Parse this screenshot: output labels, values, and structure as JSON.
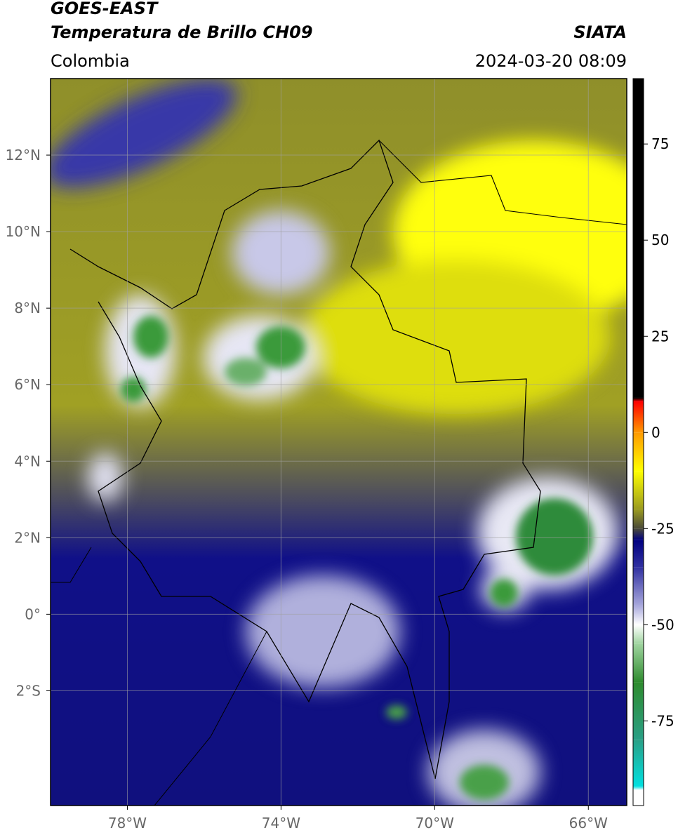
{
  "header": {
    "title": "GOES-EAST",
    "subtitle": "Temperatura de Brillo CH09",
    "source": "SIATA",
    "region": "Colombia",
    "timestamp": "2024-03-20 08:09"
  },
  "map": {
    "xlim": [
      -80,
      -65
    ],
    "ylim": [
      -5,
      14
    ],
    "xticks": [
      {
        "value": -78,
        "label": "78°W"
      },
      {
        "value": -74,
        "label": "74°W"
      },
      {
        "value": -70,
        "label": "70°W"
      },
      {
        "value": -66,
        "label": "66°W"
      }
    ],
    "yticks": [
      {
        "value": 12,
        "label": "12°N"
      },
      {
        "value": 10,
        "label": "10°N"
      },
      {
        "value": 8,
        "label": "8°N"
      },
      {
        "value": 6,
        "label": "6°N"
      },
      {
        "value": 4,
        "label": "4°N"
      },
      {
        "value": 2,
        "label": "2°N"
      },
      {
        "value": 0,
        "label": "0°"
      },
      {
        "value": -2,
        "label": "2°S"
      }
    ],
    "grid": true
  },
  "colorbar": {
    "lim": [
      -97,
      92
    ],
    "ticks": [
      75,
      50,
      25,
      0,
      -25,
      -50,
      -75
    ],
    "colormap": [
      {
        "value": -97,
        "color": "#ffffff"
      },
      {
        "value": -93,
        "color": "#ffffff"
      },
      {
        "value": -92,
        "color": "#00e0e0"
      },
      {
        "value": -80,
        "color": "#2aa087"
      },
      {
        "value": -65,
        "color": "#2e8b2e"
      },
      {
        "value": -55,
        "color": "#9fd49f"
      },
      {
        "value": -50,
        "color": "#ffffff"
      },
      {
        "value": -45,
        "color": "#a8a8dc"
      },
      {
        "value": -35,
        "color": "#3030a0"
      },
      {
        "value": -28,
        "color": "#000080"
      },
      {
        "value": -25,
        "color": "#4a4a38"
      },
      {
        "value": -20,
        "color": "#9a9a20"
      },
      {
        "value": -10,
        "color": "#ffff00"
      },
      {
        "value": 0,
        "color": "#ff9900"
      },
      {
        "value": 8,
        "color": "#ff0000"
      },
      {
        "value": 9,
        "color": "#000000"
      },
      {
        "value": 92,
        "color": "#000000"
      }
    ]
  }
}
